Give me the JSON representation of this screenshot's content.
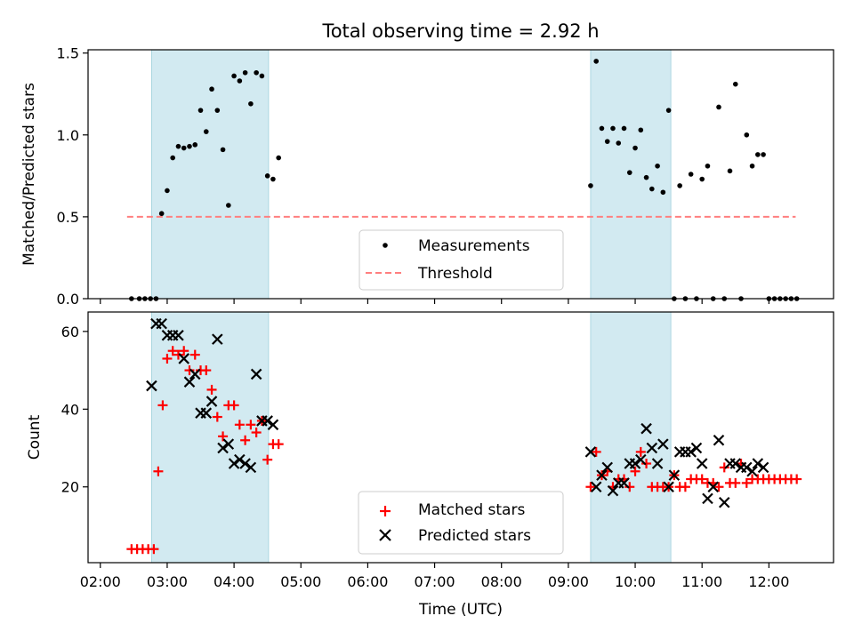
{
  "chart_data": [
    {
      "type": "scatter",
      "title": "Total observing time = 2.92 h",
      "ylabel": "Matched/Predicted stars",
      "xlabel": "",
      "xlim": [
        "02:00",
        "13:00"
      ],
      "ylim": [
        0,
        1.52
      ],
      "yticks": [
        {
          "value": 0.0,
          "label": "0.0"
        },
        {
          "value": 0.5,
          "label": "0.5"
        },
        {
          "value": 1.0,
          "label": "1.0"
        },
        {
          "value": 1.5,
          "label": "1.5"
        }
      ],
      "shaded_intervals": [
        [
          "02:46",
          "04:31"
        ],
        [
          "09:20",
          "10:32"
        ]
      ],
      "shade_color": "#add8e6",
      "threshold": {
        "name": "Threshold",
        "value": 0.5,
        "x_range": [
          "02:24",
          "12:24"
        ],
        "color": "#ff7f7f"
      },
      "legend": {
        "placement": "lower-center",
        "entries": [
          "Measurements",
          "Threshold"
        ]
      },
      "series": [
        {
          "name": "Measurements",
          "color": "#000000",
          "x": [
            "02:28",
            "02:35",
            "02:40",
            "02:45",
            "02:50",
            "02:55",
            "03:00",
            "03:05",
            "03:10",
            "03:15",
            "03:20",
            "03:25",
            "03:30",
            "03:35",
            "03:40",
            "03:45",
            "03:50",
            "03:55",
            "04:00",
            "04:05",
            "04:10",
            "04:15",
            "04:20",
            "04:25",
            "04:30",
            "04:35",
            "04:40",
            "09:20",
            "09:25",
            "09:30",
            "09:35",
            "09:40",
            "09:45",
            "09:50",
            "09:55",
            "10:00",
            "10:05",
            "10:10",
            "10:15",
            "10:20",
            "10:25",
            "10:30",
            "10:35",
            "10:40",
            "10:45",
            "10:50",
            "10:55",
            "11:00",
            "11:05",
            "11:10",
            "11:15",
            "11:20",
            "11:25",
            "11:30",
            "11:35",
            "11:40",
            "11:45",
            "11:50",
            "11:55",
            "12:00",
            "12:05",
            "12:10",
            "12:15",
            "12:20",
            "12:25"
          ],
          "y": [
            0,
            0,
            0,
            0,
            0,
            0.52,
            0.66,
            0.86,
            0.93,
            0.92,
            0.93,
            0.94,
            1.15,
            1.02,
            1.28,
            1.15,
            0.91,
            0.57,
            1.36,
            1.33,
            1.38,
            1.19,
            1.38,
            1.36,
            0.75,
            0.73,
            0.86,
            0.69,
            1.45,
            1.04,
            0.96,
            1.04,
            0.95,
            1.04,
            0.77,
            0.92,
            1.03,
            0.74,
            0.67,
            0.81,
            0.65,
            1.15,
            0,
            0.69,
            0,
            0.76,
            0,
            0.73,
            0.81,
            0,
            1.17,
            0,
            0.78,
            1.31,
            0,
            1.0,
            0.81,
            0.88,
            0.88,
            0,
            0,
            0,
            0,
            0,
            0
          ]
        }
      ]
    },
    {
      "type": "scatter",
      "title": "",
      "xlabel": "Time (UTC)",
      "ylabel": "Count",
      "xlim": [
        "02:00",
        "13:00"
      ],
      "ylim": [
        0.5,
        65
      ],
      "yticks": [
        {
          "value": 20,
          "label": "20"
        },
        {
          "value": 40,
          "label": "40"
        },
        {
          "value": 60,
          "label": "60"
        }
      ],
      "xticks": [
        "02:00",
        "03:00",
        "04:00",
        "05:00",
        "06:00",
        "07:00",
        "08:00",
        "09:00",
        "10:00",
        "11:00",
        "12:00"
      ],
      "shaded_intervals": [
        [
          "02:46",
          "04:31"
        ],
        [
          "09:20",
          "10:32"
        ]
      ],
      "shade_color": "#add8e6",
      "legend": {
        "placement": "lower-center",
        "entries": [
          "Matched stars",
          "Predicted stars"
        ]
      },
      "series": [
        {
          "name": "Matched stars",
          "marker": "plus",
          "color": "#ff0000",
          "x": [
            "02:28",
            "02:33",
            "02:38",
            "02:43",
            "02:48",
            "02:52",
            "02:56",
            "03:00",
            "03:05",
            "03:10",
            "03:15",
            "03:20",
            "03:25",
            "03:30",
            "03:35",
            "03:40",
            "03:45",
            "03:50",
            "03:55",
            "04:00",
            "04:05",
            "04:10",
            "04:15",
            "04:20",
            "04:25",
            "04:30",
            "04:35",
            "04:40",
            "09:20",
            "09:25",
            "09:30",
            "09:35",
            "09:40",
            "09:45",
            "09:50",
            "09:55",
            "10:00",
            "10:05",
            "10:10",
            "10:15",
            "10:20",
            "10:25",
            "10:30",
            "10:35",
            "10:40",
            "10:45",
            "10:50",
            "10:55",
            "11:00",
            "11:05",
            "11:10",
            "11:15",
            "11:20",
            "11:25",
            "11:30",
            "11:35",
            "11:40",
            "11:45",
            "11:50",
            "11:55",
            "12:00",
            "12:05",
            "12:10",
            "12:15",
            "12:20",
            "12:25"
          ],
          "y": [
            4,
            4,
            4,
            4,
            4,
            24,
            41,
            53,
            55,
            54,
            55,
            50,
            54,
            50,
            50,
            45,
            38,
            33,
            41,
            41,
            36,
            32,
            36,
            34,
            37,
            27,
            31,
            31,
            20,
            29,
            23,
            24,
            20,
            22,
            22,
            20,
            24,
            29,
            26,
            20,
            20,
            20,
            20,
            23,
            20,
            20,
            22,
            22,
            22,
            21,
            21,
            20,
            25,
            21,
            21,
            26,
            21,
            22,
            22,
            22,
            22,
            22,
            22,
            22,
            22,
            22
          ]
        },
        {
          "name": "Predicted stars",
          "marker": "x",
          "color": "#000000",
          "x": [
            "02:46",
            "02:50",
            "02:55",
            "03:00",
            "03:05",
            "03:10",
            "03:15",
            "03:20",
            "03:25",
            "03:30",
            "03:35",
            "03:40",
            "03:45",
            "03:50",
            "03:55",
            "04:00",
            "04:05",
            "04:10",
            "04:15",
            "04:20",
            "04:25",
            "04:30",
            "04:35",
            "09:20",
            "09:25",
            "09:30",
            "09:35",
            "09:40",
            "09:45",
            "09:50",
            "09:55",
            "10:00",
            "10:05",
            "10:10",
            "10:15",
            "10:20",
            "10:25",
            "10:30",
            "10:35",
            "10:40",
            "10:45",
            "10:50",
            "10:55",
            "11:00",
            "11:05",
            "11:10",
            "11:15",
            "11:20",
            "11:25",
            "11:30",
            "11:35",
            "11:40",
            "11:45",
            "11:50",
            "11:55"
          ],
          "y": [
            46,
            62,
            62,
            59,
            59,
            59,
            53,
            47,
            49,
            39,
            39,
            42,
            58,
            30,
            31,
            26,
            27,
            26,
            25,
            49,
            37,
            37,
            36,
            29,
            20,
            23,
            25,
            19,
            21,
            21,
            26,
            26,
            27,
            35,
            30,
            26,
            31,
            20,
            23,
            29,
            29,
            29,
            30,
            26,
            17,
            20,
            32,
            16,
            26,
            26,
            25,
            25,
            24,
            26,
            25
          ]
        }
      ]
    }
  ]
}
